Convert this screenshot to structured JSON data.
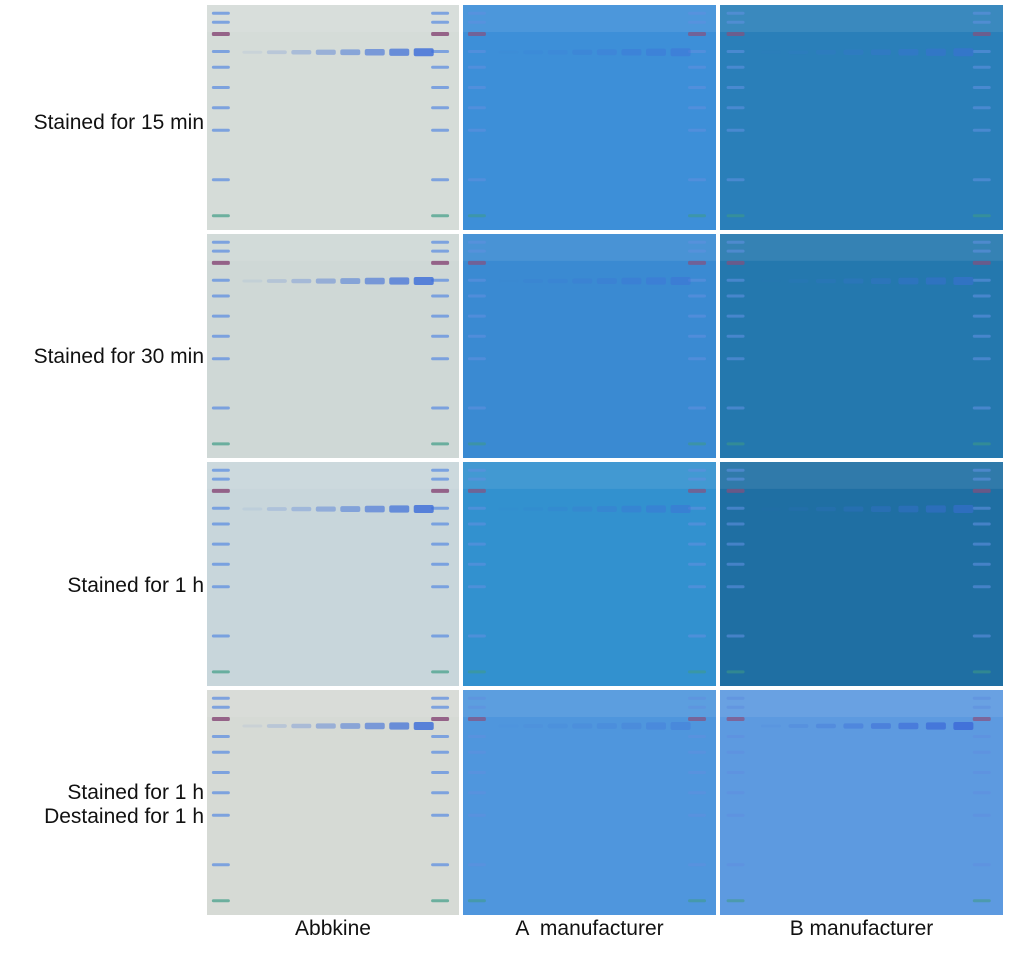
{
  "row_labels": [
    {
      "lines": [
        "Stained for 15 min"
      ]
    },
    {
      "lines": [
        "Stained for 30 min"
      ]
    },
    {
      "lines": [
        "Stained for 1 h"
      ]
    },
    {
      "lines": [
        "Stained for 1 h",
        "Destained for 1 h"
      ]
    }
  ],
  "column_labels": [
    "Abbkine",
    "A  manufacturer",
    "B manufacturer"
  ],
  "gel_backgrounds": [
    [
      "#d5dcd8",
      "#3d8fd8",
      "#2a7fb9"
    ],
    [
      "#cfd8d6",
      "#3a8ad2",
      "#2478ae"
    ],
    [
      "#c8d6db",
      "#3291cf",
      "#1f6fa3"
    ],
    [
      "#d6dad5",
      "#4f96dd",
      "#5d9ae0"
    ]
  ],
  "band_colors": {
    "marker": "#5f8fe0",
    "marker_key": "#8a4e7a",
    "marker_low": "#3f9c86",
    "sample": "#3f6fd8"
  }
}
